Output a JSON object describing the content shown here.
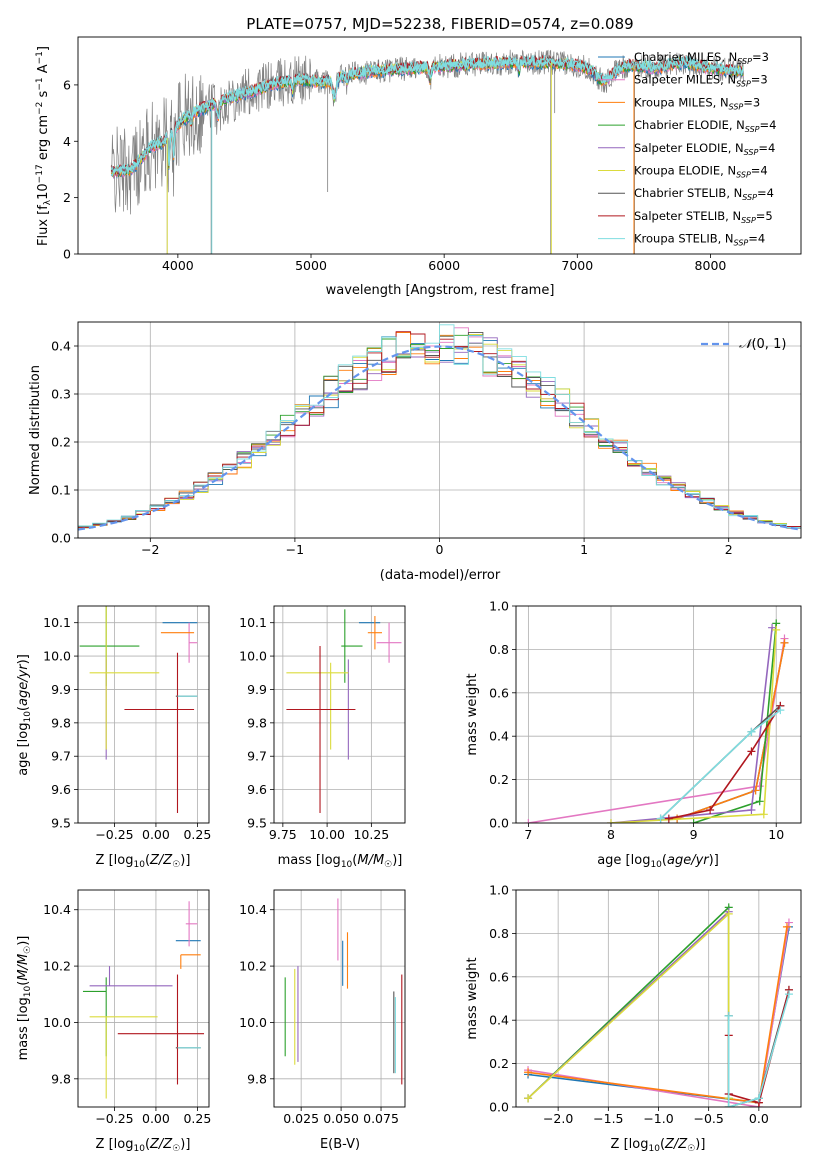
{
  "figure": {
    "title": "PLATE=0757, MJD=52238, FIBERID=0574, z=0.089",
    "colors": {
      "Chabrier MILES": "#1f77b4",
      "Salpeter MILES": "#e377c2",
      "Kroupa MILES": "#ff7f0e",
      "Chabrier ELODIE": "#2ca02c",
      "Salpeter ELODIE": "#9467bd",
      "Kroupa ELODIE": "#dbdb3d",
      "Chabrier STELIB": "#555555",
      "Salpeter STELIB": "#b0171f",
      "Kroupa STELIB": "#7fdde0",
      "data": "#808080",
      "normal_curve": "#6495ed"
    }
  },
  "chart_data": [
    {
      "id": "spectrum",
      "type": "line",
      "title": "PLATE=0757, MJD=52238, FIBERID=0574, z=0.089",
      "xlabel": "wavelength [Angstrom, rest frame]",
      "ylabel": "Flux [f_λ 10^-17 erg cm^-2 s^-1 A^-1]",
      "xlim": [
        3250,
        8680
      ],
      "ylim": [
        0,
        7.7
      ],
      "xticks": [
        "4000",
        "5000",
        "6000",
        "7000",
        "8000"
      ],
      "yticks": [
        "0",
        "2",
        "4",
        "6"
      ],
      "grid": false,
      "legend_position": "upper-right",
      "legend": [
        {
          "label": "Chabrier MILES, N",
          "sub": "SSP",
          "suffix": "=3"
        },
        {
          "label": "Salpeter MILES, N",
          "sub": "SSP",
          "suffix": "=3"
        },
        {
          "label": "Kroupa MILES, N",
          "sub": "SSP",
          "suffix": "=3"
        },
        {
          "label": "Chabrier ELODIE, N",
          "sub": "SSP",
          "suffix": "=4"
        },
        {
          "label": "Salpeter ELODIE, N",
          "sub": "SSP",
          "suffix": "=4"
        },
        {
          "label": "Kroupa ELODIE, N",
          "sub": "SSP",
          "suffix": "=4"
        },
        {
          "label": "Chabrier STELIB, N",
          "sub": "SSP",
          "suffix": "=4"
        },
        {
          "label": "Salpeter STELIB, N",
          "sub": "SSP",
          "suffix": "=5"
        },
        {
          "label": "Kroupa STELIB, N",
          "sub": "SSP",
          "suffix": "=4"
        }
      ],
      "continuum": [
        [
          3500,
          2.9
        ],
        [
          3650,
          3.0
        ],
        [
          3800,
          3.8
        ],
        [
          3900,
          4.0
        ],
        [
          4000,
          4.6
        ],
        [
          4100,
          5.0
        ],
        [
          4300,
          5.4
        ],
        [
          4500,
          5.7
        ],
        [
          4700,
          6.0
        ],
        [
          4900,
          6.2
        ],
        [
          5100,
          6.1
        ],
        [
          5300,
          6.4
        ],
        [
          5500,
          6.5
        ],
        [
          5800,
          6.6
        ],
        [
          6100,
          6.7
        ],
        [
          6500,
          6.8
        ],
        [
          6800,
          6.8
        ],
        [
          7000,
          6.7
        ],
        [
          7200,
          6.5
        ],
        [
          7400,
          6.7
        ],
        [
          7600,
          6.6
        ],
        [
          7800,
          6.8
        ],
        [
          8000,
          6.6
        ],
        [
          8200,
          6.5
        ]
      ]
    },
    {
      "id": "residuals",
      "type": "area",
      "xlabel": "(data-model)/error",
      "ylabel": "Normed distribution",
      "xlim": [
        -2.5,
        2.5
      ],
      "ylim": [
        0,
        0.45
      ],
      "xticks": [
        "−2",
        "−1",
        "0",
        "1",
        "2"
      ],
      "yticks": [
        "0.0",
        "0.1",
        "0.2",
        "0.3",
        "0.4"
      ],
      "grid": true,
      "legend_position": "upper-right",
      "legend_label": "N(0,1)",
      "bin_width": 0.1
    },
    {
      "id": "age-vs-Z",
      "type": "scatter",
      "xlabel": "Z [log10(Z/Z☉)]",
      "ylabel": "age [log10(age/yr)]",
      "xlim": [
        -0.47,
        0.32
      ],
      "ylim": [
        9.5,
        10.15
      ],
      "xticks": [
        "−0.25",
        "0.00",
        "0.25"
      ],
      "yticks": [
        "9.5",
        "9.6",
        "9.7",
        "9.8",
        "9.9",
        "10.0",
        "10.1"
      ],
      "grid": true,
      "points": [
        {
          "model": "Chabrier MILES",
          "x": 0.04,
          "y": 10.1,
          "xerr": [
            0.0,
            0.21
          ],
          "yerr": [
            0.0,
            0.0
          ]
        },
        {
          "model": "Salpeter MILES",
          "x": 0.2,
          "y": 10.04,
          "xerr": [
            0.0,
            0.05
          ],
          "yerr": [
            0.06,
            0.06
          ]
        },
        {
          "model": "Kroupa MILES",
          "x": 0.03,
          "y": 10.07,
          "xerr": [
            0.0,
            0.2
          ],
          "yerr": [
            0.0,
            0.0
          ]
        },
        {
          "model": "Chabrier ELODIE",
          "x": -0.3,
          "y": 10.03,
          "xerr": [
            0.16,
            0.2
          ],
          "yerr": [
            0.12,
            0.12
          ]
        },
        {
          "model": "Salpeter ELODIE",
          "x": -0.3,
          "y": 9.84,
          "xerr": [
            0.0,
            0.0
          ],
          "yerr": [
            0.15,
            0.15
          ]
        },
        {
          "model": "Kroupa ELODIE",
          "x": -0.3,
          "y": 9.95,
          "xerr": [
            0.1,
            0.32
          ],
          "yerr": [
            0.23,
            0.23
          ]
        },
        {
          "model": "Chabrier STELIB",
          "x": 0.12,
          "y": 9.88,
          "xerr": [
            0.0,
            0.13
          ],
          "yerr": [
            0.0,
            0.0
          ]
        },
        {
          "model": "Salpeter STELIB",
          "x": 0.13,
          "y": 9.84,
          "xerr": [
            0.32,
            0.1
          ],
          "yerr": [
            0.31,
            0.17
          ]
        },
        {
          "model": "Kroupa STELIB",
          "x": 0.13,
          "y": 9.88,
          "xerr": [
            0.0,
            0.12
          ],
          "yerr": [
            0.0,
            0.0
          ]
        }
      ]
    },
    {
      "id": "age-vs-mass",
      "type": "scatter",
      "xlabel": "mass [log10(M/M☉)]",
      "ylabel": "",
      "xlim": [
        9.7,
        10.44
      ],
      "ylim": [
        9.5,
        10.15
      ],
      "xticks": [
        "9.75",
        "10.00",
        "10.25"
      ],
      "yticks": [
        "9.5",
        "9.6",
        "9.7",
        "9.8",
        "9.9",
        "10.0",
        "10.1"
      ],
      "grid": true,
      "points": [
        {
          "model": "Chabrier MILES",
          "x": 10.24,
          "y": 10.1,
          "xerr": [
            0.06,
            0.06
          ],
          "yerr": [
            0.0,
            0.0
          ]
        },
        {
          "model": "Salpeter MILES",
          "x": 10.35,
          "y": 10.04,
          "xerr": [
            0.07,
            0.07
          ],
          "yerr": [
            0.06,
            0.06
          ]
        },
        {
          "model": "Kroupa MILES",
          "x": 10.27,
          "y": 10.07,
          "xerr": [
            0.04,
            0.04
          ],
          "yerr": [
            0.05,
            0.05
          ]
        },
        {
          "model": "Chabrier ELODIE",
          "x": 10.1,
          "y": 10.03,
          "xerr": [
            0.02,
            0.1
          ],
          "yerr": [
            0.11,
            0.11
          ]
        },
        {
          "model": "Salpeter ELODIE",
          "x": 10.12,
          "y": 9.84,
          "xerr": [
            0.0,
            0.0
          ],
          "yerr": [
            0.15,
            0.15
          ]
        },
        {
          "model": "Kroupa ELODIE",
          "x": 10.02,
          "y": 9.95,
          "xerr": [
            0.25,
            0.1
          ],
          "yerr": [
            0.23,
            0.03
          ]
        },
        {
          "model": "Chabrier STELIB",
          "x": 9.91,
          "y": 9.88,
          "xerr": [
            0.0,
            0.0
          ],
          "yerr": [
            0.0,
            0.0
          ]
        },
        {
          "model": "Salpeter STELIB",
          "x": 9.96,
          "y": 9.84,
          "xerr": [
            0.19,
            0.2
          ],
          "yerr": [
            0.31,
            0.19
          ]
        },
        {
          "model": "Kroupa STELIB",
          "x": 9.91,
          "y": 9.88,
          "xerr": [
            0.0,
            0.0
          ],
          "yerr": [
            0.0,
            0.0
          ]
        }
      ]
    },
    {
      "id": "massweight-vs-age",
      "type": "line",
      "xlabel": "age [log10(age/yr)]",
      "ylabel": "mass weight",
      "xlim": [
        6.85,
        10.3
      ],
      "ylim": [
        0,
        1
      ],
      "xticks": [
        "7",
        "8",
        "9",
        "10"
      ],
      "yticks": [
        "0.0",
        "0.2",
        "0.4",
        "0.6",
        "0.8",
        "1.0"
      ],
      "grid": true,
      "series": [
        {
          "model": "Chabrier MILES",
          "x": [
            8.8,
            9.75,
            10.1
          ],
          "y": [
            0.02,
            0.15,
            0.83
          ]
        },
        {
          "model": "Salpeter MILES",
          "x": [
            7.0,
            9.8,
            10.1
          ],
          "y": [
            0.0,
            0.17,
            0.85
          ]
        },
        {
          "model": "Kroupa MILES",
          "x": [
            8.8,
            9.75,
            10.1
          ],
          "y": [
            0.02,
            0.15,
            0.83
          ]
        },
        {
          "model": "Chabrier ELODIE",
          "x": [
            9.0,
            9.8,
            10.0
          ],
          "y": [
            0.0,
            0.1,
            0.92
          ]
        },
        {
          "model": "Salpeter ELODIE",
          "x": [
            8.0,
            9.7,
            9.95
          ],
          "y": [
            0.0,
            0.06,
            0.9
          ]
        },
        {
          "model": "Kroupa ELODIE",
          "x": [
            8.0,
            9.85,
            10.0
          ],
          "y": [
            0.0,
            0.04,
            0.89
          ]
        },
        {
          "model": "Chabrier STELIB",
          "x": [
            8.6,
            9.7,
            10.05
          ],
          "y": [
            0.02,
            0.42,
            0.54
          ]
        },
        {
          "model": "Salpeter STELIB",
          "x": [
            8.7,
            9.2,
            9.7,
            10.05
          ],
          "y": [
            0.02,
            0.06,
            0.33,
            0.54
          ]
        },
        {
          "model": "Kroupa STELIB",
          "x": [
            8.6,
            9.7,
            10.05
          ],
          "y": [
            0.02,
            0.42,
            0.52
          ]
        }
      ]
    },
    {
      "id": "mass-vs-Z",
      "type": "scatter",
      "xlabel": "Z [log10(Z/Z☉)]",
      "ylabel": "mass [log10(M/M☉)]",
      "xlim": [
        -0.47,
        0.32
      ],
      "ylim": [
        9.7,
        10.47
      ],
      "xticks": [
        "−0.25",
        "0.00",
        "0.25"
      ],
      "yticks": [
        "9.8",
        "10.0",
        "10.2",
        "10.4"
      ],
      "grid": true,
      "points": [
        {
          "model": "Chabrier MILES",
          "x": 0.12,
          "y": 10.29,
          "xerr": [
            0.0,
            0.15
          ],
          "yerr": [
            0.0,
            0.0
          ]
        },
        {
          "model": "Salpeter MILES",
          "x": 0.2,
          "y": 10.35,
          "xerr": [
            0.02,
            0.05
          ],
          "yerr": [
            0.08,
            0.08
          ]
        },
        {
          "model": "Kroupa MILES",
          "x": 0.15,
          "y": 10.24,
          "xerr": [
            0.0,
            0.12
          ],
          "yerr": [
            0.05,
            0.0
          ]
        },
        {
          "model": "Chabrier ELODIE",
          "x": -0.3,
          "y": 10.11,
          "xerr": [
            0.14,
            0.0
          ],
          "yerr": [
            0.23,
            0.05
          ]
        },
        {
          "model": "Salpeter ELODIE",
          "x": -0.28,
          "y": 10.13,
          "xerr": [
            0.12,
            0.38
          ],
          "yerr": [
            0.0,
            0.07
          ]
        },
        {
          "model": "Kroupa ELODIE",
          "x": -0.3,
          "y": 10.02,
          "xerr": [
            0.1,
            0.31
          ],
          "yerr": [
            0.29,
            0.0
          ]
        },
        {
          "model": "Chabrier STELIB",
          "x": 0.12,
          "y": 9.91,
          "xerr": [
            0.0,
            0.15
          ],
          "yerr": [
            0.0,
            0.0
          ]
        },
        {
          "model": "Salpeter STELIB",
          "x": 0.13,
          "y": 9.96,
          "xerr": [
            0.36,
            0.16
          ],
          "yerr": [
            0.18,
            0.21
          ]
        },
        {
          "model": "Kroupa STELIB",
          "x": 0.13,
          "y": 9.91,
          "xerr": [
            0.0,
            0.14
          ],
          "yerr": [
            0.0,
            0.0
          ]
        }
      ]
    },
    {
      "id": "mass-vs-EBV",
      "type": "scatter",
      "xlabel": "E(B-V)",
      "ylabel": "",
      "xlim": [
        0.008,
        0.09
      ],
      "ylim": [
        9.7,
        10.47
      ],
      "xticks": [
        "0.025",
        "0.050",
        "0.075"
      ],
      "yticks": [
        "9.8",
        "10.0",
        "10.2",
        "10.4"
      ],
      "grid": true,
      "points": [
        {
          "model": "Chabrier MILES",
          "x": 0.051,
          "y": 10.2,
          "xerr": [
            0.0,
            0.0
          ],
          "yerr": [
            0.07,
            0.09
          ]
        },
        {
          "model": "Salpeter MILES",
          "x": 0.048,
          "y": 10.35,
          "xerr": [
            0.0,
            0.0
          ],
          "yerr": [
            0.13,
            0.09
          ]
        },
        {
          "model": "Kroupa MILES",
          "x": 0.054,
          "y": 10.24,
          "xerr": [
            0.0,
            0.0
          ],
          "yerr": [
            0.12,
            0.08
          ]
        },
        {
          "model": "Chabrier ELODIE",
          "x": 0.015,
          "y": 10.02,
          "xerr": [
            0.0,
            0.0
          ],
          "yerr": [
            0.14,
            0.14
          ]
        },
        {
          "model": "Salpeter ELODIE",
          "x": 0.023,
          "y": 10.03,
          "xerr": [
            0.0,
            0.0
          ],
          "yerr": [
            0.17,
            0.17
          ]
        },
        {
          "model": "Kroupa ELODIE",
          "x": 0.021,
          "y": 10.02,
          "xerr": [
            0.0,
            0.0
          ],
          "yerr": [
            0.17,
            0.17
          ]
        },
        {
          "model": "Chabrier STELIB",
          "x": 0.083,
          "y": 9.97,
          "xerr": [
            0.0,
            0.0
          ],
          "yerr": [
            0.15,
            0.14
          ]
        },
        {
          "model": "Salpeter STELIB",
          "x": 0.088,
          "y": 9.98,
          "xerr": [
            0.0,
            0.0
          ],
          "yerr": [
            0.2,
            0.19
          ]
        },
        {
          "model": "Kroupa STELIB",
          "x": 0.084,
          "y": 9.96,
          "xerr": [
            0.0,
            0.0
          ],
          "yerr": [
            0.14,
            0.13
          ]
        }
      ]
    },
    {
      "id": "massweight-vs-Z",
      "type": "line",
      "xlabel": "Z [log10(Z/Z☉)]",
      "ylabel": "mass weight",
      "xlim": [
        -2.42,
        0.42
      ],
      "ylim": [
        0,
        1
      ],
      "xticks": [
        "−2.0",
        "−1.5",
        "−1.0",
        "−0.5",
        "0.0"
      ],
      "yticks": [
        "0.0",
        "0.2",
        "0.4",
        "0.6",
        "0.8",
        "1.0"
      ],
      "grid": true,
      "series": [
        {
          "model": "Chabrier MILES",
          "x": [
            -2.3,
            0.0,
            0.3
          ],
          "y": [
            0.15,
            0.02,
            0.83
          ]
        },
        {
          "model": "Salpeter MILES",
          "x": [
            -2.3,
            0.0,
            0.3
          ],
          "y": [
            0.17,
            0.0,
            0.85
          ]
        },
        {
          "model": "Kroupa MILES",
          "x": [
            -2.3,
            0.0,
            0.28
          ],
          "y": [
            0.16,
            0.02,
            0.83
          ]
        },
        {
          "model": "Chabrier ELODIE",
          "x": [
            -2.3,
            -0.3,
            -0.3
          ],
          "y": [
            0.04,
            0.92,
            0.04
          ]
        },
        {
          "model": "Salpeter ELODIE",
          "x": [
            -2.3,
            -0.3,
            -0.3
          ],
          "y": [
            0.04,
            0.9,
            0.06
          ]
        },
        {
          "model": "Kroupa ELODIE",
          "x": [
            -2.3,
            -0.3,
            -0.3
          ],
          "y": [
            0.04,
            0.89,
            0.04
          ]
        },
        {
          "model": "Chabrier STELIB",
          "x": [
            -0.3,
            -0.3,
            0.0,
            0.3
          ],
          "y": [
            0.42,
            0.0,
            0.04,
            0.54
          ]
        },
        {
          "model": "Salpeter STELIB",
          "x": [
            -0.3,
            -0.3,
            0.0,
            0.3
          ],
          "y": [
            0.33,
            0.06,
            0.02,
            0.54
          ]
        },
        {
          "model": "Kroupa STELIB",
          "x": [
            -0.3,
            -0.3,
            0.0,
            0.3
          ],
          "y": [
            0.42,
            0.0,
            0.04,
            0.52
          ]
        }
      ]
    }
  ]
}
